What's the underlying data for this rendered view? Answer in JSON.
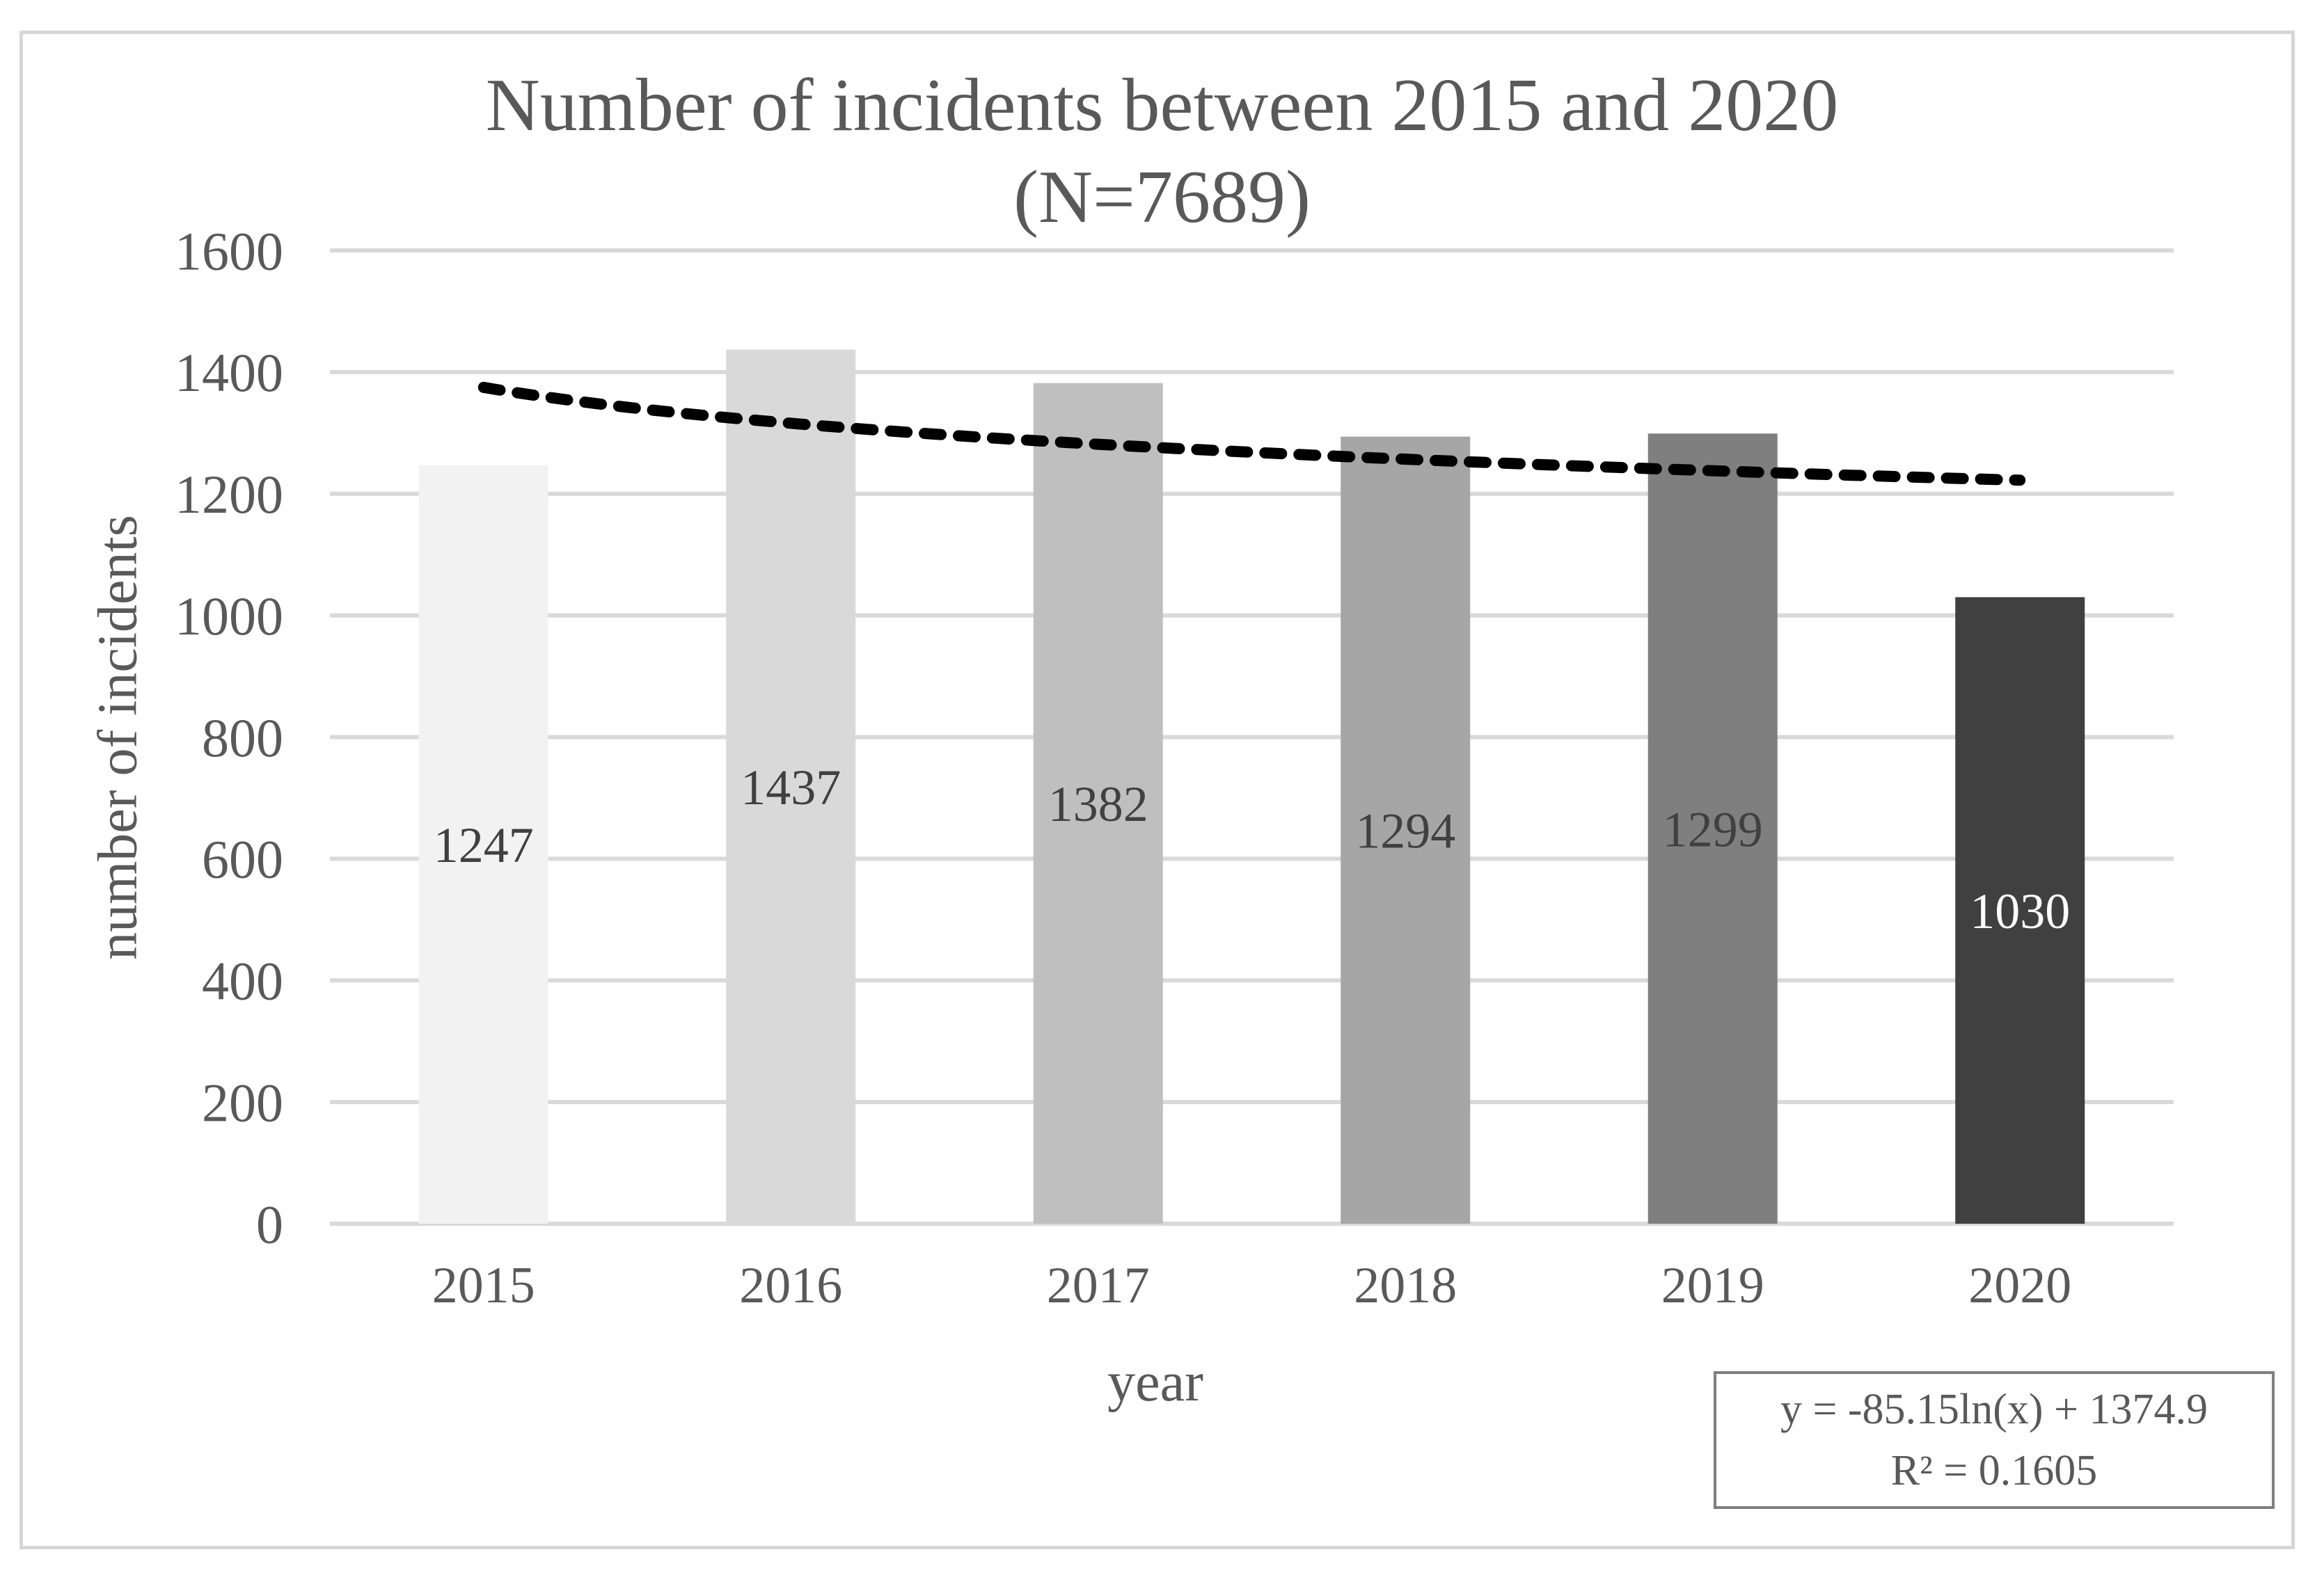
{
  "figure": {
    "title_line1": "Number of incidents between 2015 and 2020",
    "title_line2": "(N=7689)"
  },
  "equation_box": {
    "line1": "y = -85.15ln(x) + 1374.9",
    "line2": "R² = 0.1605"
  },
  "chart_data": {
    "type": "bar",
    "title": "Number of incidents between 2015 and 2020 (N=7689)",
    "xlabel": "year",
    "ylabel": "number of incidents",
    "categories": [
      "2015",
      "2016",
      "2017",
      "2018",
      "2019",
      "2020"
    ],
    "values": [
      1247,
      1437,
      1382,
      1294,
      1299,
      1030
    ],
    "total_n": 7689,
    "ylim": [
      0,
      1600
    ],
    "yticks": [
      0,
      200,
      400,
      600,
      800,
      1000,
      1200,
      1400,
      1600
    ],
    "grid": "horizontal",
    "legend": "none",
    "bar_colors": [
      "#f2f2f2",
      "#d9d9d9",
      "#bfbfbf",
      "#a6a6a6",
      "#7f7f7f",
      "#404040"
    ],
    "bar_label_colors": [
      "#404040",
      "#404040",
      "#404040",
      "#404040",
      "#404040",
      "#ffffff"
    ],
    "bar_label_position": "inside-center",
    "text_color": "#595959",
    "gridline_color": "#d9d9d9",
    "trendline": {
      "type": "logarithmic",
      "coef_a": -85.15,
      "coef_b": 1374.9,
      "equation": "y = -85.15ln(x) + 1374.9",
      "r_squared_label": "R² = 0.1605",
      "r_squared": 0.1605,
      "color": "#000000",
      "style": "dashed"
    }
  }
}
